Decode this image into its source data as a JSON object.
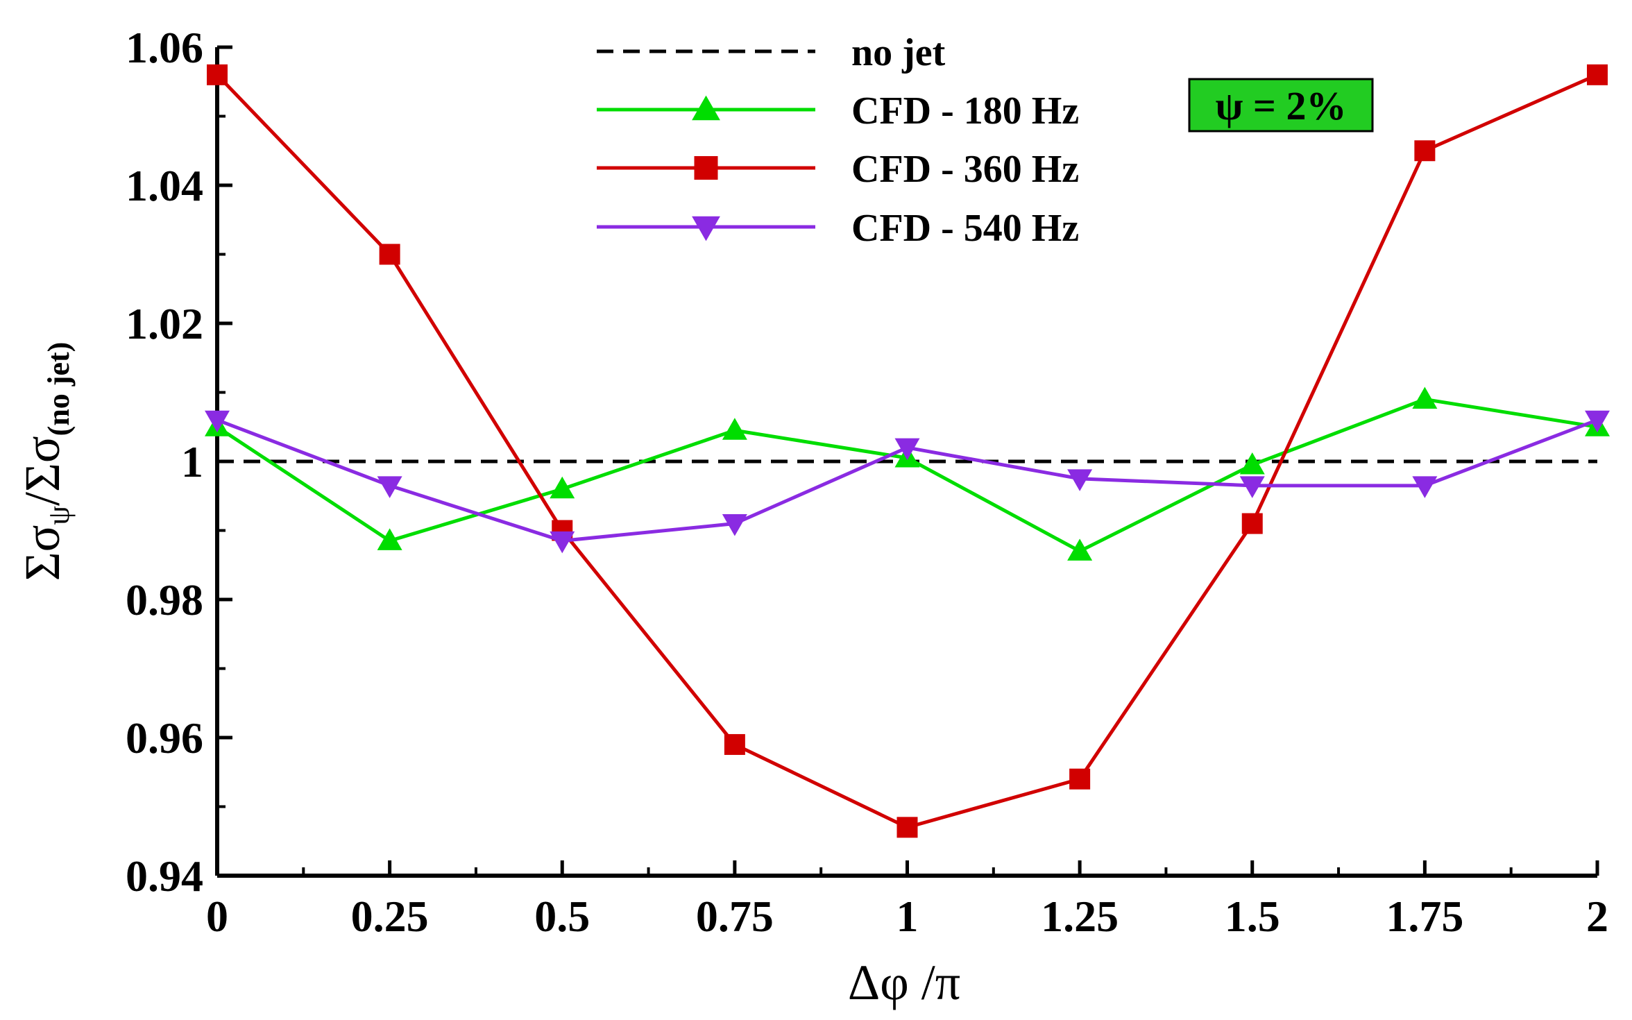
{
  "chart_data": {
    "type": "line",
    "title": "",
    "xlabel": "Δφ /π",
    "ylabel": {
      "main1": "Σσ",
      "sub1": "ψ",
      "main2": "/Σσ",
      "sub2": "(no jet)"
    },
    "x": [
      0,
      0.25,
      0.5,
      0.75,
      1,
      1.25,
      1.5,
      1.75,
      2
    ],
    "xticks": [
      0,
      0.25,
      0.5,
      0.75,
      1,
      1.25,
      1.5,
      1.75,
      2
    ],
    "xtick_labels": [
      "0",
      "0.25",
      "0.5",
      "0.75",
      "1",
      "1.25",
      "1.5",
      "1.75",
      "2"
    ],
    "xlim": [
      0,
      2
    ],
    "yticks": [
      0.94,
      0.96,
      0.98,
      1,
      1.02,
      1.04,
      1.06
    ],
    "ytick_labels": [
      "0.94",
      "0.96",
      "0.98",
      "1",
      "1.02",
      "1.04",
      "1.06"
    ],
    "ylim": [
      0.94,
      1.06
    ],
    "grid": false,
    "legend_position": "top-center",
    "annotation": "ψ = 2%",
    "colors": {
      "no_jet": "#000000",
      "cfd_180": "#00dd00",
      "cfd_360": "#d10000",
      "cfd_540": "#8a2be2",
      "annotation_bg": "#22cc22"
    },
    "series": [
      {
        "key": "no_jet",
        "name": "no jet",
        "style": "dashed",
        "marker": "none",
        "values": [
          1,
          1,
          1,
          1,
          1,
          1,
          1,
          1,
          1
        ]
      },
      {
        "key": "cfd_180",
        "name": "CFD - 180 Hz",
        "style": "solid",
        "marker": "triangle-up",
        "values": [
          1.005,
          0.9885,
          0.996,
          1.0045,
          1.0005,
          0.987,
          0.9995,
          1.009,
          1.005
        ]
      },
      {
        "key": "cfd_360",
        "name": "CFD - 360 Hz",
        "style": "solid",
        "marker": "square",
        "values": [
          1.056,
          1.03,
          0.99,
          0.959,
          0.947,
          0.954,
          0.991,
          1.045,
          1.056
        ]
      },
      {
        "key": "cfd_540",
        "name": "CFD - 540 Hz",
        "style": "solid",
        "marker": "triangle-down",
        "values": [
          1.006,
          0.9965,
          0.9885,
          0.991,
          1.002,
          0.9975,
          0.9965,
          0.9965,
          1.006
        ]
      }
    ]
  }
}
